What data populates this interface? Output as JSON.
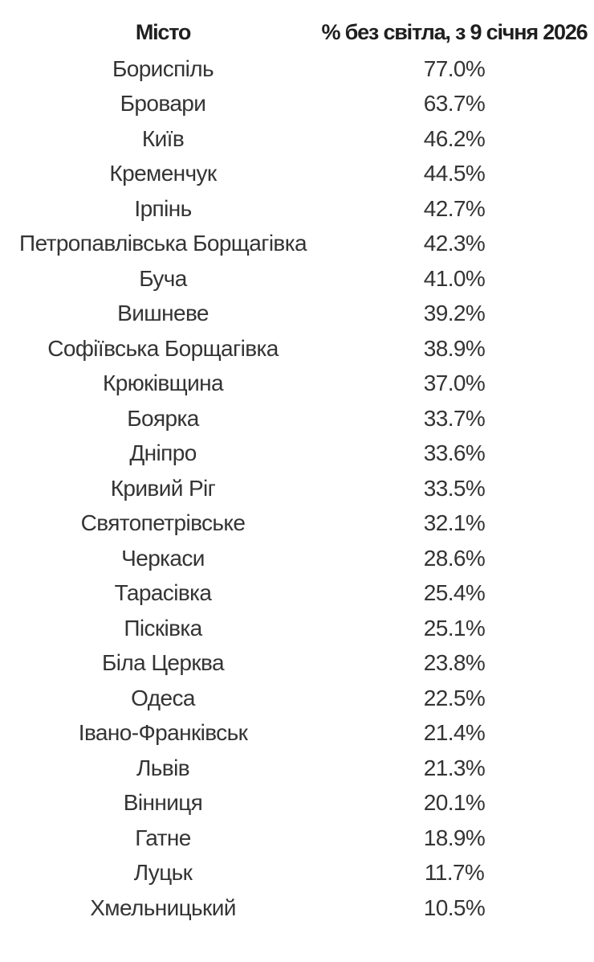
{
  "page": {
    "background": "#ffffff",
    "text_color": "#343434",
    "header_text_color": "#1f1f1f"
  },
  "chart_data": {
    "type": "table",
    "title": "",
    "columns": [
      "Місто",
      "% без світла, з 9 січня 2026"
    ],
    "categories": [
      "Бориспіль",
      "Бровари",
      "Київ",
      "Кременчук",
      "Ірпінь",
      "Петропавлівська Борщагівка",
      "Буча",
      "Вишневе",
      "Софіївська Борщагівка",
      "Крюківщина",
      "Боярка",
      "Дніпро",
      "Кривий Ріг",
      "Святопетрівське",
      "Черкаси",
      "Тарасівка",
      "Пісківка",
      "Біла Церква",
      "Одеса",
      "Івано-Франківськ",
      "Львів",
      "Вінниця",
      "Гатне",
      "Луцьк",
      "Хмельницький"
    ],
    "values": [
      77.0,
      63.7,
      46.2,
      44.5,
      42.7,
      42.3,
      41.0,
      39.2,
      38.9,
      37.0,
      33.7,
      33.6,
      33.5,
      32.1,
      28.6,
      25.4,
      25.1,
      23.8,
      22.5,
      21.4,
      21.3,
      20.1,
      18.9,
      11.7,
      10.5
    ],
    "rows": [
      {
        "city": "Бориспіль",
        "percent": "77.0%"
      },
      {
        "city": "Бровари",
        "percent": "63.7%"
      },
      {
        "city": "Київ",
        "percent": "46.2%"
      },
      {
        "city": "Кременчук",
        "percent": "44.5%"
      },
      {
        "city": "Ірпінь",
        "percent": "42.7%"
      },
      {
        "city": "Петропавлівська Борщагівка",
        "percent": "42.3%"
      },
      {
        "city": "Буча",
        "percent": "41.0%"
      },
      {
        "city": "Вишневе",
        "percent": "39.2%"
      },
      {
        "city": "Софіївська Борщагівка",
        "percent": "38.9%"
      },
      {
        "city": "Крюківщина",
        "percent": "37.0%"
      },
      {
        "city": "Боярка",
        "percent": "33.7%"
      },
      {
        "city": "Дніпро",
        "percent": "33.6%"
      },
      {
        "city": "Кривий Ріг",
        "percent": "33.5%"
      },
      {
        "city": "Святопетрівське",
        "percent": "32.1%"
      },
      {
        "city": "Черкаси",
        "percent": "28.6%"
      },
      {
        "city": "Тарасівка",
        "percent": "25.4%"
      },
      {
        "city": "Пісківка",
        "percent": "25.1%"
      },
      {
        "city": "Біла Церква",
        "percent": "23.8%"
      },
      {
        "city": "Одеса",
        "percent": "22.5%"
      },
      {
        "city": "Івано-Франківськ",
        "percent": "21.4%"
      },
      {
        "city": "Львів",
        "percent": "21.3%"
      },
      {
        "city": "Вінниця",
        "percent": "20.1%"
      },
      {
        "city": "Гатне",
        "percent": "18.9%"
      },
      {
        "city": "Луцьк",
        "percent": "11.7%"
      },
      {
        "city": "Хмельницький",
        "percent": "10.5%"
      }
    ],
    "layout": {
      "grid": false,
      "row_shading": false,
      "city_column_align": "center",
      "value_column_align": "center"
    }
  }
}
